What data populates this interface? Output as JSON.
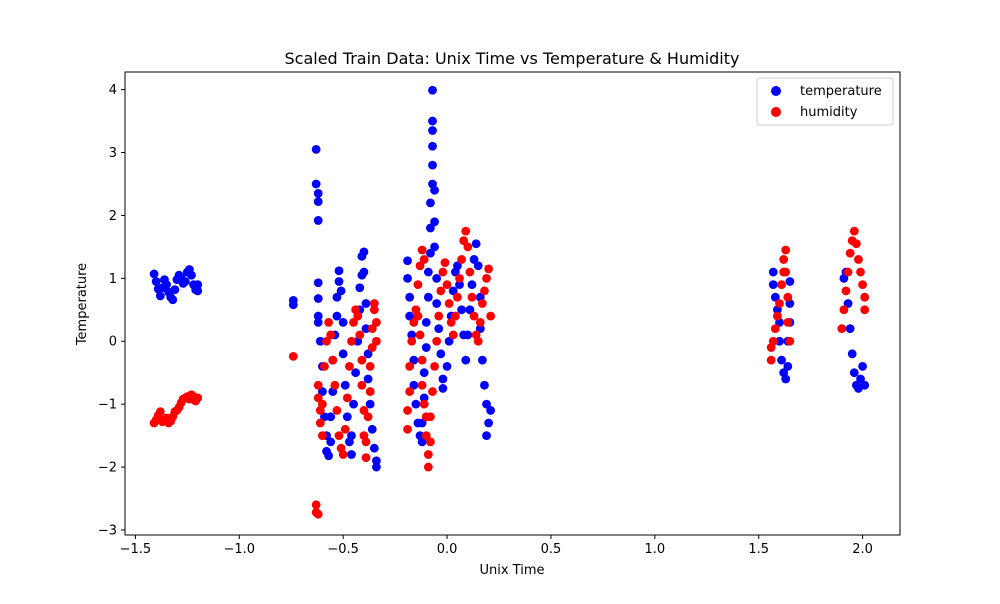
{
  "chart_data": {
    "type": "scatter",
    "title": "Scaled Train Data: Unix Time vs Temperature & Humidity",
    "xlabel": "Unix Time",
    "ylabel": "Temperature",
    "xlim": [
      -1.55,
      2.18
    ],
    "ylim": [
      -3.08,
      4.28
    ],
    "xticks": [
      -1.5,
      -1.0,
      -0.5,
      0.0,
      0.5,
      1.0,
      1.5,
      2.0
    ],
    "xtick_labels": [
      "−1.5",
      "−1.0",
      "−0.5",
      "0.0",
      "0.5",
      "1.0",
      "1.5",
      "2.0"
    ],
    "yticks": [
      -3,
      -2,
      -1,
      0,
      1,
      2,
      3,
      4
    ],
    "ytick_labels": [
      "−3",
      "−2",
      "−1",
      "0",
      "1",
      "2",
      "3",
      "4"
    ],
    "grid": false,
    "legend_position": "top-right",
    "series": [
      {
        "name": "temperature",
        "color": "#0000ff",
        "points": [
          [
            -1.41,
            1.07
          ],
          [
            -1.4,
            0.95
          ],
          [
            -1.39,
            0.83
          ],
          [
            -1.38,
            0.72
          ],
          [
            -1.37,
            0.85
          ],
          [
            -1.36,
            0.98
          ],
          [
            -1.35,
            0.9
          ],
          [
            -1.34,
            0.78
          ],
          [
            -1.33,
            0.7
          ],
          [
            -1.32,
            0.66
          ],
          [
            -1.31,
            0.82
          ],
          [
            -1.3,
            0.98
          ],
          [
            -1.29,
            1.05
          ],
          [
            -1.28,
            1.02
          ],
          [
            -1.27,
            0.92
          ],
          [
            -1.26,
            0.95
          ],
          [
            -1.25,
            1.1
          ],
          [
            -1.24,
            1.14
          ],
          [
            -1.23,
            1.05
          ],
          [
            -1.22,
            0.9
          ],
          [
            -1.21,
            0.82
          ],
          [
            -1.2,
            0.9
          ],
          [
            -1.2,
            0.8
          ],
          [
            -0.74,
            0.65
          ],
          [
            -0.74,
            0.58
          ],
          [
            -0.63,
            3.05
          ],
          [
            -0.63,
            2.5
          ],
          [
            -0.62,
            2.35
          ],
          [
            -0.62,
            2.22
          ],
          [
            -0.62,
            1.92
          ],
          [
            -0.62,
            0.93
          ],
          [
            -0.62,
            0.68
          ],
          [
            -0.62,
            0.4
          ],
          [
            -0.62,
            0.3
          ],
          [
            -0.61,
            0.0
          ],
          [
            -0.6,
            -0.4
          ],
          [
            -0.6,
            -0.8
          ],
          [
            -0.59,
            -1.2
          ],
          [
            -0.58,
            -1.5
          ],
          [
            -0.58,
            -1.75
          ],
          [
            -0.57,
            -1.82
          ],
          [
            -0.56,
            -1.6
          ],
          [
            -0.56,
            -1.2
          ],
          [
            -0.55,
            -0.8
          ],
          [
            -0.55,
            -0.3
          ],
          [
            -0.54,
            0.1
          ],
          [
            -0.53,
            0.4
          ],
          [
            -0.53,
            0.7
          ],
          [
            -0.52,
            0.95
          ],
          [
            -0.52,
            1.12
          ],
          [
            -0.51,
            0.8
          ],
          [
            -0.5,
            0.3
          ],
          [
            -0.5,
            -0.2
          ],
          [
            -0.49,
            -0.7
          ],
          [
            -0.48,
            -1.2
          ],
          [
            -0.47,
            -1.6
          ],
          [
            -0.46,
            -1.8
          ],
          [
            -0.46,
            -1.5
          ],
          [
            -0.45,
            -1.0
          ],
          [
            -0.44,
            -0.5
          ],
          [
            -0.43,
            0.0
          ],
          [
            -0.42,
            0.5
          ],
          [
            -0.42,
            0.85
          ],
          [
            -0.41,
            1.05
          ],
          [
            -0.41,
            1.35
          ],
          [
            -0.4,
            1.42
          ],
          [
            -0.4,
            1.1
          ],
          [
            -0.39,
            0.6
          ],
          [
            -0.39,
            0.2
          ],
          [
            -0.38,
            -0.2
          ],
          [
            -0.38,
            -0.6
          ],
          [
            -0.37,
            -1.0
          ],
          [
            -0.36,
            -1.4
          ],
          [
            -0.35,
            -1.7
          ],
          [
            -0.34,
            -1.9
          ],
          [
            -0.34,
            -2.0
          ],
          [
            -0.19,
            1.28
          ],
          [
            -0.19,
            1.0
          ],
          [
            -0.18,
            0.7
          ],
          [
            -0.18,
            0.4
          ],
          [
            -0.17,
            0.1
          ],
          [
            -0.16,
            -0.3
          ],
          [
            -0.16,
            -0.7
          ],
          [
            -0.15,
            -1.0
          ],
          [
            -0.14,
            -1.3
          ],
          [
            -0.13,
            -1.5
          ],
          [
            -0.12,
            -1.6
          ],
          [
            -0.12,
            -1.3
          ],
          [
            -0.11,
            -0.9
          ],
          [
            -0.11,
            -0.5
          ],
          [
            -0.1,
            -0.1
          ],
          [
            -0.1,
            0.3
          ],
          [
            -0.09,
            0.7
          ],
          [
            -0.09,
            1.1
          ],
          [
            -0.08,
            1.4
          ],
          [
            -0.08,
            1.8
          ],
          [
            -0.08,
            2.2
          ],
          [
            -0.07,
            2.5
          ],
          [
            -0.07,
            2.8
          ],
          [
            -0.07,
            3.1
          ],
          [
            -0.07,
            3.35
          ],
          [
            -0.07,
            3.5
          ],
          [
            -0.07,
            3.99
          ],
          [
            -0.06,
            2.4
          ],
          [
            -0.06,
            1.9
          ],
          [
            -0.06,
            1.5
          ],
          [
            -0.05,
            1.0
          ],
          [
            -0.05,
            0.6
          ],
          [
            -0.04,
            0.2
          ],
          [
            -0.03,
            -0.2
          ],
          [
            -0.02,
            -0.6
          ],
          [
            -0.02,
            -0.75
          ],
          [
            0.0,
            -0.4
          ],
          [
            0.01,
            0.0
          ],
          [
            0.02,
            0.4
          ],
          [
            0.03,
            0.8
          ],
          [
            0.04,
            1.1
          ],
          [
            0.05,
            1.2
          ],
          [
            0.06,
            0.9
          ],
          [
            0.07,
            0.5
          ],
          [
            0.08,
            0.1
          ],
          [
            0.09,
            -0.3
          ],
          [
            0.1,
            0.1
          ],
          [
            0.11,
            0.5
          ],
          [
            0.12,
            0.9
          ],
          [
            0.13,
            1.3
          ],
          [
            0.14,
            1.55
          ],
          [
            0.15,
            1.2
          ],
          [
            0.16,
            0.7
          ],
          [
            0.16,
            0.2
          ],
          [
            0.17,
            -0.3
          ],
          [
            0.18,
            -0.7
          ],
          [
            0.19,
            -1.0
          ],
          [
            0.19,
            -1.5
          ],
          [
            0.2,
            -1.3
          ],
          [
            0.21,
            -1.1
          ],
          [
            1.57,
            1.1
          ],
          [
            1.57,
            0.9
          ],
          [
            1.58,
            0.7
          ],
          [
            1.59,
            0.5
          ],
          [
            1.6,
            0.3
          ],
          [
            1.6,
            0.0
          ],
          [
            1.61,
            -0.3
          ],
          [
            1.62,
            -0.5
          ],
          [
            1.63,
            -0.6
          ],
          [
            1.64,
            -0.4
          ],
          [
            1.64,
            0.0
          ],
          [
            1.65,
            0.3
          ],
          [
            1.65,
            0.6
          ],
          [
            1.65,
            0.95
          ],
          [
            1.91,
            1.0
          ],
          [
            1.92,
            1.1
          ],
          [
            1.93,
            0.6
          ],
          [
            1.94,
            0.2
          ],
          [
            1.95,
            -0.2
          ],
          [
            1.96,
            -0.5
          ],
          [
            1.97,
            -0.7
          ],
          [
            1.98,
            -0.75
          ],
          [
            1.99,
            -0.6
          ],
          [
            2.0,
            -0.4
          ],
          [
            2.01,
            -0.7
          ]
        ]
      },
      {
        "name": "humidity",
        "color": "#ff0000",
        "points": [
          [
            -1.41,
            -1.3
          ],
          [
            -1.4,
            -1.25
          ],
          [
            -1.39,
            -1.18
          ],
          [
            -1.38,
            -1.12
          ],
          [
            -1.37,
            -1.28
          ],
          [
            -1.36,
            -1.25
          ],
          [
            -1.35,
            -1.22
          ],
          [
            -1.34,
            -1.3
          ],
          [
            -1.33,
            -1.27
          ],
          [
            -1.32,
            -1.2
          ],
          [
            -1.31,
            -1.12
          ],
          [
            -1.3,
            -1.1
          ],
          [
            -1.29,
            -1.05
          ],
          [
            -1.28,
            -0.98
          ],
          [
            -1.27,
            -0.92
          ],
          [
            -1.26,
            -0.9
          ],
          [
            -1.25,
            -0.88
          ],
          [
            -1.24,
            -0.92
          ],
          [
            -1.23,
            -0.85
          ],
          [
            -1.22,
            -0.88
          ],
          [
            -1.21,
            -0.95
          ],
          [
            -1.2,
            -0.9
          ],
          [
            -0.74,
            -0.24
          ],
          [
            -0.63,
            -2.6
          ],
          [
            -0.63,
            -2.72
          ],
          [
            -0.62,
            -2.75
          ],
          [
            -0.62,
            -0.7
          ],
          [
            -0.62,
            -0.9
          ],
          [
            -0.61,
            -1.1
          ],
          [
            -0.61,
            -1.3
          ],
          [
            -0.6,
            -1.5
          ],
          [
            -0.6,
            -1.0
          ],
          [
            -0.59,
            -0.4
          ],
          [
            -0.58,
            0.0
          ],
          [
            -0.57,
            0.3
          ],
          [
            -0.56,
            0.1
          ],
          [
            -0.55,
            -0.3
          ],
          [
            -0.54,
            -0.7
          ],
          [
            -0.53,
            -1.1
          ],
          [
            -0.52,
            -1.5
          ],
          [
            -0.51,
            -1.7
          ],
          [
            -0.5,
            -1.8
          ],
          [
            -0.49,
            -1.4
          ],
          [
            -0.48,
            -0.9
          ],
          [
            -0.47,
            -0.4
          ],
          [
            -0.46,
            0.0
          ],
          [
            -0.45,
            0.3
          ],
          [
            -0.44,
            0.5
          ],
          [
            -0.43,
            0.4
          ],
          [
            -0.42,
            0.1
          ],
          [
            -0.41,
            -0.3
          ],
          [
            -0.41,
            -0.7
          ],
          [
            -0.4,
            -1.1
          ],
          [
            -0.4,
            -1.5
          ],
          [
            -0.39,
            -1.85
          ],
          [
            -0.39,
            -1.6
          ],
          [
            -0.38,
            -1.2
          ],
          [
            -0.37,
            -0.8
          ],
          [
            -0.37,
            -0.4
          ],
          [
            -0.36,
            -0.1
          ],
          [
            -0.36,
            0.2
          ],
          [
            -0.35,
            0.5
          ],
          [
            -0.35,
            0.6
          ],
          [
            -0.34,
            0.3
          ],
          [
            -0.34,
            0.0
          ],
          [
            -0.19,
            -1.4
          ],
          [
            -0.19,
            -1.1
          ],
          [
            -0.18,
            -0.8
          ],
          [
            -0.18,
            -0.4
          ],
          [
            -0.17,
            0.0
          ],
          [
            -0.16,
            0.3
          ],
          [
            -0.15,
            0.5
          ],
          [
            -0.14,
            0.4
          ],
          [
            -0.13,
            0.1
          ],
          [
            -0.12,
            -0.3
          ],
          [
            -0.12,
            -0.7
          ],
          [
            -0.11,
            -1.0
          ],
          [
            -0.1,
            -1.2
          ],
          [
            -0.1,
            -1.5
          ],
          [
            -0.09,
            -1.8
          ],
          [
            -0.09,
            -2.0
          ],
          [
            -0.08,
            -1.6
          ],
          [
            -0.08,
            -1.2
          ],
          [
            -0.07,
            -0.8
          ],
          [
            -0.06,
            -0.4
          ],
          [
            -0.05,
            0.0
          ],
          [
            -0.04,
            0.4
          ],
          [
            -0.03,
            0.8
          ],
          [
            -0.02,
            1.1
          ],
          [
            -0.01,
            1.25
          ],
          [
            0.0,
            0.9
          ],
          [
            0.01,
            0.6
          ],
          [
            0.02,
            0.3
          ],
          [
            0.03,
            0.1
          ],
          [
            0.04,
            0.4
          ],
          [
            0.05,
            0.7
          ],
          [
            0.06,
            1.0
          ],
          [
            0.07,
            1.3
          ],
          [
            0.08,
            1.6
          ],
          [
            0.09,
            1.75
          ],
          [
            0.1,
            1.5
          ],
          [
            0.11,
            1.1
          ],
          [
            0.12,
            0.7
          ],
          [
            0.13,
            0.4
          ],
          [
            0.14,
            0.1
          ],
          [
            0.15,
            0.0
          ],
          [
            0.16,
            0.3
          ],
          [
            0.17,
            0.6
          ],
          [
            0.18,
            0.8
          ],
          [
            0.19,
            1.0
          ],
          [
            0.2,
            1.15
          ],
          [
            0.21,
            0.4
          ],
          [
            -0.14,
            0.9
          ],
          [
            -0.13,
            1.2
          ],
          [
            -0.12,
            1.45
          ],
          [
            -0.11,
            1.3
          ],
          [
            1.56,
            -0.1
          ],
          [
            1.56,
            -0.3
          ],
          [
            1.57,
            0.0
          ],
          [
            1.58,
            0.2
          ],
          [
            1.59,
            0.4
          ],
          [
            1.6,
            0.6
          ],
          [
            1.61,
            0.9
          ],
          [
            1.62,
            1.1
          ],
          [
            1.62,
            1.3
          ],
          [
            1.63,
            1.45
          ],
          [
            1.63,
            1.1
          ],
          [
            1.64,
            0.7
          ],
          [
            1.64,
            0.3
          ],
          [
            1.65,
            0.0
          ],
          [
            1.9,
            0.2
          ],
          [
            1.91,
            0.5
          ],
          [
            1.92,
            0.8
          ],
          [
            1.93,
            1.1
          ],
          [
            1.94,
            1.4
          ],
          [
            1.95,
            1.6
          ],
          [
            1.96,
            1.75
          ],
          [
            1.97,
            1.55
          ],
          [
            1.98,
            1.3
          ],
          [
            1.99,
            1.1
          ],
          [
            2.0,
            0.9
          ],
          [
            2.01,
            0.7
          ],
          [
            2.01,
            0.5
          ]
        ]
      }
    ]
  }
}
